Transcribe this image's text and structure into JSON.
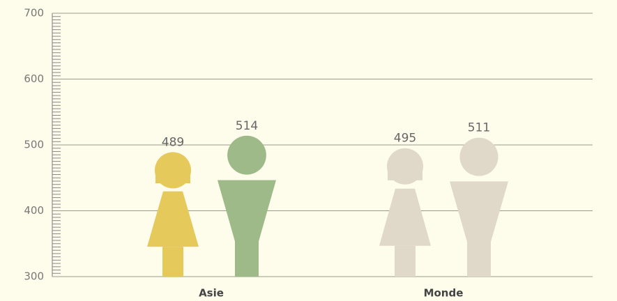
{
  "chart_data": {
    "type": "pictograph",
    "categories": [
      "Asie",
      "Monde"
    ],
    "series": [
      {
        "figure": "female",
        "colors": [
          "#e5c95a",
          "#e0d8c8"
        ],
        "values": [
          489,
          495
        ]
      },
      {
        "figure": "male",
        "colors": [
          "#9dba88",
          "#e0d8c8"
        ],
        "values": [
          514,
          511
        ]
      }
    ],
    "ylim": [
      300,
      700
    ],
    "yticks": [
      300,
      400,
      500,
      600,
      700
    ],
    "yminorticks": [
      305,
      310,
      315,
      320,
      325,
      330,
      335,
      340,
      345,
      350,
      355,
      360,
      365,
      370,
      375,
      380,
      385,
      390,
      395,
      405,
      410,
      415,
      420,
      425,
      430,
      435,
      440,
      445,
      450,
      455,
      460,
      465,
      470,
      475,
      480,
      485,
      490,
      495,
      505,
      510,
      515,
      520,
      525,
      530,
      535,
      540,
      545,
      550,
      555,
      560,
      565,
      570,
      575,
      580,
      585,
      590,
      595,
      605,
      610,
      615,
      620,
      625,
      630,
      635,
      640,
      645,
      650,
      655,
      660,
      665,
      670,
      675,
      680,
      685,
      690,
      695
    ],
    "grid": true
  }
}
